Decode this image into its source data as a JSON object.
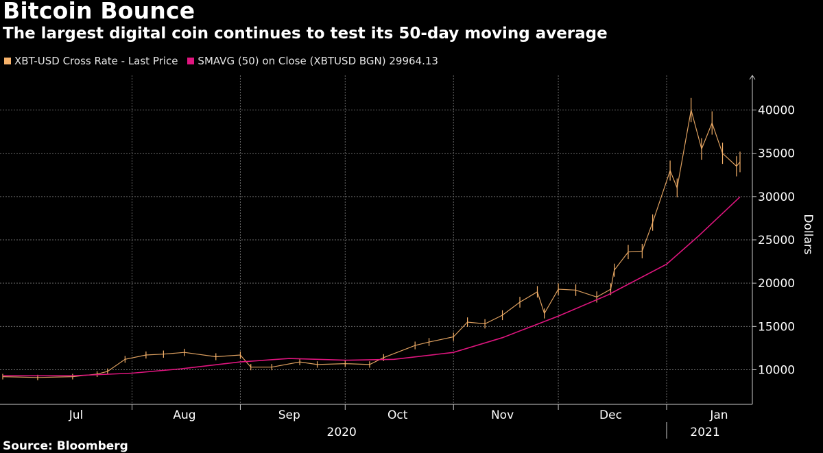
{
  "title": "Bitcoin Bounce",
  "subtitle": "The largest digital coin continues to test its 50-day moving average",
  "source": "Source: Bloomberg",
  "colors": {
    "price": "#f7b26a",
    "sma": "#e0157f",
    "grid": "#6a6a6a",
    "background": "#000000"
  },
  "chart_data": {
    "type": "line",
    "title": "Bitcoin Bounce",
    "subtitle": "The largest digital coin continues to test its 50-day moving average",
    "ylabel": "Dollars",
    "xlabel": "",
    "ylim": [
      6000,
      44000
    ],
    "xlim": [
      "2020-06-25",
      "2021-01-22"
    ],
    "y_ticks": [
      10000,
      15000,
      20000,
      25000,
      30000,
      35000,
      40000
    ],
    "y_axis_side": "right",
    "grid": true,
    "legend_position": "top-left",
    "x_month_labels": [
      {
        "label": "Jul",
        "date": "2020-07-16"
      },
      {
        "label": "Aug",
        "date": "2020-08-16"
      },
      {
        "label": "Sep",
        "date": "2020-09-15"
      },
      {
        "label": "Oct",
        "date": "2020-10-16"
      },
      {
        "label": "Nov",
        "date": "2020-11-15"
      },
      {
        "label": "Dec",
        "date": "2020-12-16"
      },
      {
        "label": "Jan",
        "date": "2021-01-16"
      }
    ],
    "x_month_boundaries": [
      "2020-08-01",
      "2020-09-01",
      "2020-10-01",
      "2020-11-01",
      "2020-12-01",
      "2021-01-01"
    ],
    "x_year_labels": [
      {
        "label": "2020",
        "date": "2020-09-30"
      },
      {
        "label": "2021",
        "date": "2021-01-12"
      }
    ],
    "x_year_boundary": "2021-01-01",
    "series": [
      {
        "name": "XBT-USD Cross Rate - Last Price",
        "style": "ohlc-bars",
        "x": [
          "2020-06-25",
          "2020-07-05",
          "2020-07-15",
          "2020-07-22",
          "2020-07-25",
          "2020-07-30",
          "2020-08-05",
          "2020-08-10",
          "2020-08-16",
          "2020-08-25",
          "2020-09-01",
          "2020-09-04",
          "2020-09-10",
          "2020-09-18",
          "2020-09-23",
          "2020-10-01",
          "2020-10-08",
          "2020-10-12",
          "2020-10-21",
          "2020-10-25",
          "2020-11-01",
          "2020-11-05",
          "2020-11-10",
          "2020-11-15",
          "2020-11-20",
          "2020-11-25",
          "2020-11-27",
          "2020-12-01",
          "2020-12-06",
          "2020-12-12",
          "2020-12-16",
          "2020-12-17",
          "2020-12-21",
          "2020-12-25",
          "2020-12-28",
          "2021-01-02",
          "2021-01-04",
          "2021-01-08",
          "2021-01-11",
          "2021-01-14",
          "2021-01-17",
          "2021-01-21",
          "2021-01-22"
        ],
        "values": [
          9200,
          9100,
          9200,
          9500,
          9800,
          11200,
          11700,
          11800,
          12000,
          11500,
          11700,
          10300,
          10300,
          10900,
          10600,
          10700,
          10600,
          11400,
          12800,
          13200,
          13800,
          15500,
          15300,
          16300,
          17800,
          19000,
          16500,
          19300,
          19200,
          18400,
          19300,
          21500,
          23600,
          23700,
          27000,
          33000,
          31000,
          40000,
          35500,
          38500,
          35000,
          33500,
          34000
        ]
      },
      {
        "name": "SMAVG (50)  on Close (XBTUSD BGN) 29964.13",
        "style": "line",
        "x": [
          "2020-06-25",
          "2020-07-15",
          "2020-08-01",
          "2020-08-15",
          "2020-09-01",
          "2020-09-15",
          "2020-10-01",
          "2020-10-15",
          "2020-11-01",
          "2020-11-15",
          "2020-12-01",
          "2020-12-15",
          "2021-01-01",
          "2021-01-10",
          "2021-01-22"
        ],
        "values": [
          9300,
          9300,
          9600,
          10100,
          10900,
          11300,
          11100,
          11200,
          12000,
          13700,
          16200,
          18600,
          22200,
          25400,
          29964.13
        ]
      }
    ]
  }
}
